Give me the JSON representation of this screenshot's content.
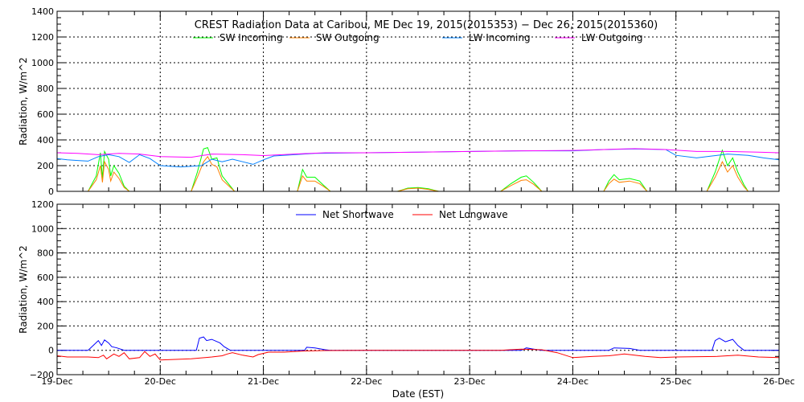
{
  "chart_data": [
    {
      "type": "line",
      "title": "CREST Radiation Data at Caribou, ME   Dec 19, 2015(2015353) − Dec 26, 2015(2015360)",
      "ylabel": "Radiation, W/m^2",
      "xlabel": "",
      "xlim": [
        0,
        7
      ],
      "ylim": [
        0,
        1400
      ],
      "yticks": [
        "0",
        "200",
        "400",
        "600",
        "800",
        "1000",
        "1200",
        "1400"
      ],
      "grid": true,
      "legend_position": "top",
      "series": [
        {
          "name": "SW Incoming",
          "color": "#00ff00",
          "points": [
            [
              0,
              0
            ],
            [
              0.3,
              0
            ],
            [
              0.38,
              120
            ],
            [
              0.42,
              300
            ],
            [
              0.44,
              100
            ],
            [
              0.46,
              310
            ],
            [
              0.5,
              250
            ],
            [
              0.52,
              120
            ],
            [
              0.55,
              200
            ],
            [
              0.6,
              140
            ],
            [
              0.65,
              40
            ],
            [
              0.7,
              0
            ],
            [
              1.3,
              0
            ],
            [
              1.36,
              150
            ],
            [
              1.42,
              330
            ],
            [
              1.46,
              340
            ],
            [
              1.5,
              250
            ],
            [
              1.55,
              260
            ],
            [
              1.6,
              120
            ],
            [
              1.66,
              60
            ],
            [
              1.72,
              0
            ],
            [
              2.33,
              0
            ],
            [
              2.38,
              170
            ],
            [
              2.42,
              110
            ],
            [
              2.5,
              110
            ],
            [
              2.58,
              50
            ],
            [
              2.65,
              0
            ],
            [
              3.3,
              0
            ],
            [
              3.4,
              25
            ],
            [
              3.5,
              30
            ],
            [
              3.6,
              20
            ],
            [
              3.7,
              0
            ],
            [
              4.3,
              0
            ],
            [
              4.4,
              60
            ],
            [
              4.5,
              110
            ],
            [
              4.55,
              120
            ],
            [
              4.62,
              70
            ],
            [
              4.7,
              0
            ],
            [
              5.3,
              0
            ],
            [
              5.35,
              80
            ],
            [
              5.4,
              130
            ],
            [
              5.45,
              90
            ],
            [
              5.55,
              100
            ],
            [
              5.65,
              80
            ],
            [
              5.72,
              0
            ],
            [
              6.3,
              0
            ],
            [
              6.38,
              150
            ],
            [
              6.45,
              320
            ],
            [
              6.5,
              200
            ],
            [
              6.55,
              260
            ],
            [
              6.6,
              150
            ],
            [
              6.66,
              50
            ],
            [
              6.7,
              0
            ],
            [
              7,
              0
            ]
          ]
        },
        {
          "name": "SW Outgoing",
          "color": "#ff8000",
          "points": [
            [
              0,
              0
            ],
            [
              0.3,
              0
            ],
            [
              0.38,
              90
            ],
            [
              0.42,
              200
            ],
            [
              0.44,
              70
            ],
            [
              0.46,
              230
            ],
            [
              0.5,
              170
            ],
            [
              0.52,
              80
            ],
            [
              0.55,
              150
            ],
            [
              0.6,
              100
            ],
            [
              0.65,
              30
            ],
            [
              0.7,
              0
            ],
            [
              1.3,
              0
            ],
            [
              1.36,
              110
            ],
            [
              1.42,
              230
            ],
            [
              1.46,
              270
            ],
            [
              1.5,
              210
            ],
            [
              1.55,
              190
            ],
            [
              1.6,
              90
            ],
            [
              1.66,
              45
            ],
            [
              1.72,
              0
            ],
            [
              2.33,
              0
            ],
            [
              2.38,
              120
            ],
            [
              2.42,
              80
            ],
            [
              2.5,
              80
            ],
            [
              2.58,
              40
            ],
            [
              2.65,
              0
            ],
            [
              3.3,
              0
            ],
            [
              3.4,
              20
            ],
            [
              3.5,
              25
            ],
            [
              3.6,
              15
            ],
            [
              3.7,
              0
            ],
            [
              4.3,
              0
            ],
            [
              4.4,
              45
            ],
            [
              4.5,
              85
            ],
            [
              4.55,
              90
            ],
            [
              4.62,
              55
            ],
            [
              4.7,
              0
            ],
            [
              5.3,
              0
            ],
            [
              5.35,
              60
            ],
            [
              5.4,
              95
            ],
            [
              5.45,
              70
            ],
            [
              5.55,
              80
            ],
            [
              5.65,
              60
            ],
            [
              5.72,
              0
            ],
            [
              6.3,
              0
            ],
            [
              6.38,
              110
            ],
            [
              6.45,
              230
            ],
            [
              6.5,
              150
            ],
            [
              6.55,
              200
            ],
            [
              6.6,
              110
            ],
            [
              6.66,
              35
            ],
            [
              6.7,
              0
            ],
            [
              7,
              0
            ]
          ]
        },
        {
          "name": "LW Incoming",
          "color": "#0080ff",
          "points": [
            [
              0,
              255
            ],
            [
              0.1,
              245
            ],
            [
              0.2,
              240
            ],
            [
              0.3,
              235
            ],
            [
              0.4,
              270
            ],
            [
              0.5,
              285
            ],
            [
              0.6,
              270
            ],
            [
              0.7,
              225
            ],
            [
              0.8,
              285
            ],
            [
              0.9,
              255
            ],
            [
              1.0,
              200
            ],
            [
              1.2,
              190
            ],
            [
              1.4,
              200
            ],
            [
              1.5,
              250
            ],
            [
              1.6,
              230
            ],
            [
              1.7,
              250
            ],
            [
              1.8,
              230
            ],
            [
              1.9,
              210
            ],
            [
              2.0,
              245
            ],
            [
              2.1,
              275
            ],
            [
              2.3,
              285
            ],
            [
              2.5,
              295
            ],
            [
              3.0,
              300
            ],
            [
              3.5,
              305
            ],
            [
              4.0,
              310
            ],
            [
              4.5,
              315
            ],
            [
              5.0,
              315
            ],
            [
              5.3,
              325
            ],
            [
              5.6,
              330
            ],
            [
              5.9,
              325
            ],
            [
              6.0,
              280
            ],
            [
              6.2,
              260
            ],
            [
              6.35,
              275
            ],
            [
              6.5,
              290
            ],
            [
              6.7,
              280
            ],
            [
              6.85,
              260
            ],
            [
              7,
              245
            ]
          ]
        },
        {
          "name": "LW Outgoing",
          "color": "#ff00ff",
          "points": [
            [
              0,
              300
            ],
            [
              0.2,
              295
            ],
            [
              0.4,
              285
            ],
            [
              0.6,
              295
            ],
            [
              0.8,
              290
            ],
            [
              1.0,
              270
            ],
            [
              1.3,
              265
            ],
            [
              1.5,
              290
            ],
            [
              1.8,
              285
            ],
            [
              2.0,
              278
            ],
            [
              2.3,
              290
            ],
            [
              2.6,
              300
            ],
            [
              3.0,
              300
            ],
            [
              3.5,
              305
            ],
            [
              4.0,
              310
            ],
            [
              4.5,
              315
            ],
            [
              5.0,
              318
            ],
            [
              5.3,
              325
            ],
            [
              5.6,
              332
            ],
            [
              5.9,
              325
            ],
            [
              6.2,
              310
            ],
            [
              6.5,
              310
            ],
            [
              6.8,
              305
            ],
            [
              7,
              300
            ]
          ]
        }
      ]
    },
    {
      "type": "line",
      "xlabel": "Date (EST)",
      "ylabel": "Radiation, W/m^2",
      "xlim": [
        0,
        7
      ],
      "ylim": [
        -200,
        1200
      ],
      "yticks": [
        "−200",
        "0",
        "200",
        "400",
        "600",
        "800",
        "1000",
        "1200"
      ],
      "xticks": [
        "19-Dec",
        "20-Dec",
        "21-Dec",
        "22-Dec",
        "23-Dec",
        "24-Dec",
        "25-Dec",
        "26-Dec"
      ],
      "grid": true,
      "legend_position": "top",
      "series": [
        {
          "name": "Net Shortwave",
          "color": "#0000ff",
          "points": [
            [
              0,
              0
            ],
            [
              0.3,
              0
            ],
            [
              0.35,
              40
            ],
            [
              0.4,
              80
            ],
            [
              0.43,
              40
            ],
            [
              0.46,
              85
            ],
            [
              0.5,
              60
            ],
            [
              0.53,
              30
            ],
            [
              0.58,
              20
            ],
            [
              0.65,
              0
            ],
            [
              1.35,
              0
            ],
            [
              1.38,
              100
            ],
            [
              1.42,
              110
            ],
            [
              1.45,
              80
            ],
            [
              1.5,
              90
            ],
            [
              1.58,
              60
            ],
            [
              1.62,
              30
            ],
            [
              1.68,
              0
            ],
            [
              2.4,
              0
            ],
            [
              2.42,
              25
            ],
            [
              2.5,
              20
            ],
            [
              2.6,
              5
            ],
            [
              2.65,
              0
            ],
            [
              4.5,
              0
            ],
            [
              4.55,
              20
            ],
            [
              4.62,
              10
            ],
            [
              4.7,
              0
            ],
            [
              5.35,
              0
            ],
            [
              5.4,
              20
            ],
            [
              5.55,
              15
            ],
            [
              5.65,
              0
            ],
            [
              6.35,
              0
            ],
            [
              6.38,
              80
            ],
            [
              6.42,
              100
            ],
            [
              6.48,
              70
            ],
            [
              6.55,
              90
            ],
            [
              6.6,
              40
            ],
            [
              6.66,
              0
            ],
            [
              7,
              0
            ]
          ]
        },
        {
          "name": "Net Longwave",
          "color": "#ff0000",
          "points": [
            [
              0,
              -45
            ],
            [
              0.1,
              -55
            ],
            [
              0.3,
              -55
            ],
            [
              0.4,
              -60
            ],
            [
              0.45,
              -40
            ],
            [
              0.48,
              -70
            ],
            [
              0.55,
              -30
            ],
            [
              0.6,
              -50
            ],
            [
              0.65,
              -20
            ],
            [
              0.7,
              -70
            ],
            [
              0.8,
              -60
            ],
            [
              0.85,
              -10
            ],
            [
              0.9,
              -50
            ],
            [
              0.95,
              -30
            ],
            [
              1.0,
              -80
            ],
            [
              1.3,
              -70
            ],
            [
              1.5,
              -55
            ],
            [
              1.6,
              -45
            ],
            [
              1.65,
              -30
            ],
            [
              1.7,
              -20
            ],
            [
              1.8,
              -40
            ],
            [
              1.9,
              -55
            ],
            [
              1.95,
              -35
            ],
            [
              2.05,
              -15
            ],
            [
              2.2,
              -15
            ],
            [
              2.4,
              -5
            ],
            [
              2.6,
              -2
            ],
            [
              3.0,
              0
            ],
            [
              4.0,
              0
            ],
            [
              4.3,
              0
            ],
            [
              4.5,
              10
            ],
            [
              4.7,
              5
            ],
            [
              4.85,
              -20
            ],
            [
              5.0,
              -60
            ],
            [
              5.2,
              -50
            ],
            [
              5.35,
              -45
            ],
            [
              5.5,
              -30
            ],
            [
              5.7,
              -50
            ],
            [
              5.85,
              -60
            ],
            [
              6.0,
              -55
            ],
            [
              6.4,
              -50
            ],
            [
              6.6,
              -40
            ],
            [
              6.8,
              -55
            ],
            [
              7,
              -60
            ]
          ]
        }
      ]
    }
  ]
}
